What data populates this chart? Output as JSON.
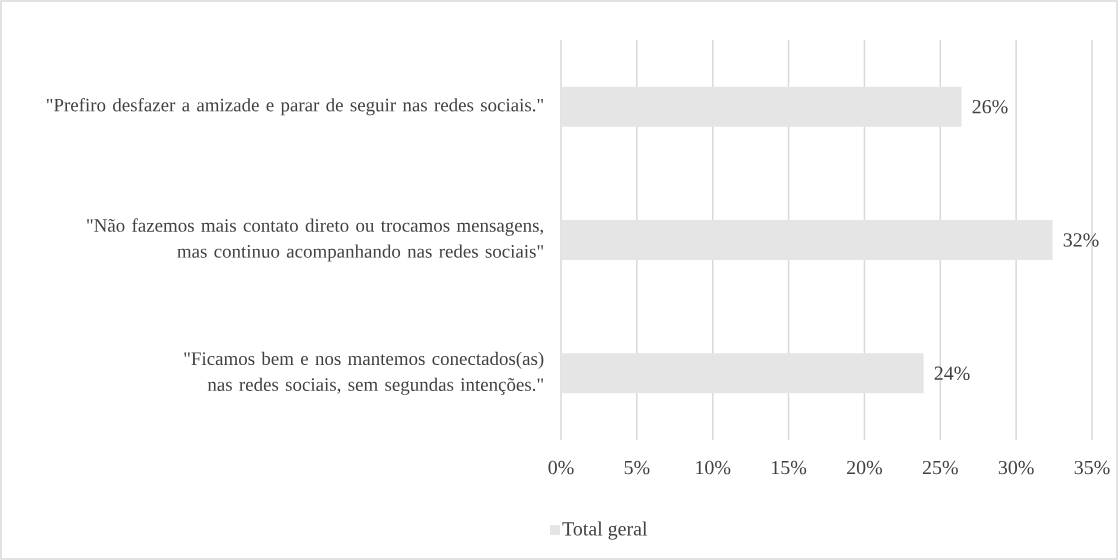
{
  "chart_data": {
    "type": "bar",
    "orientation": "horizontal",
    "categories": [
      "\"Prefiro desfazer a amizade e parar de seguir nas redes sociais.\"",
      "\"Não fazemos mais contato direto ou trocamos mensagens, mas continuo acompanhando nas redes sociais\"",
      "\"Ficamos bem e nos mantemos conectados(as) nas redes sociais, sem segundas intenções.\""
    ],
    "series": [
      {
        "name": "Total geral",
        "color": "#e5e5e5",
        "values": [
          26.4,
          32.4,
          23.9
        ],
        "value_labels": [
          "26%",
          "32%",
          "24%"
        ]
      }
    ],
    "xlim": [
      0,
      35
    ],
    "xticks": [
      {
        "value": 0,
        "label": "0%"
      },
      {
        "value": 5,
        "label": "5%"
      },
      {
        "value": 10,
        "label": "10%"
      },
      {
        "value": 15,
        "label": "15%"
      },
      {
        "value": 20,
        "label": "20%"
      },
      {
        "value": 25,
        "label": "25%"
      },
      {
        "value": 30,
        "label": "30%"
      },
      {
        "value": 35,
        "label": "35%"
      }
    ],
    "grid": "x",
    "legend": "bottom"
  }
}
